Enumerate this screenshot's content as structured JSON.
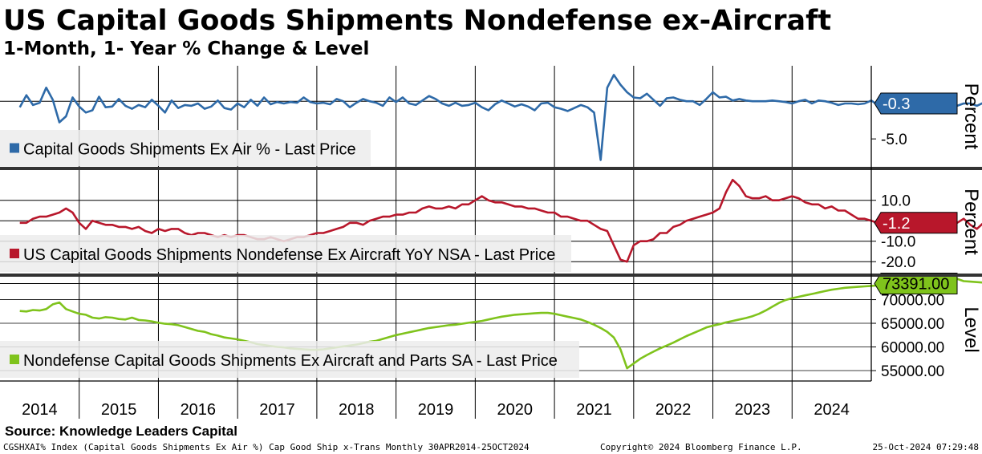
{
  "header": {
    "title": "US Capital Goods Shipments Nondefense ex-Aircraft",
    "subtitle": "1-Month, 1- Year % Change & Level"
  },
  "footer": {
    "source": "Source: Knowledge Leaders Capital",
    "description": "CGSHXAI% Index (Capital Goods Shipments Ex Air %) Cap Good Ship x-Trans  Monthly 30APR2014-25OCT2024",
    "copyright": "Copyright© 2024 Bloomberg Finance L.P.",
    "timestamp": "25-Oct-2024 07:29:48"
  },
  "colors": {
    "mom": "#2e6aa8",
    "yoy": "#b8172b",
    "level": "#7fc31c",
    "legend_bg": "#ececec"
  },
  "chart_data": [
    {
      "type": "line",
      "panel": "top",
      "ylabel": "Percent",
      "ticks": [
        "-5.0"
      ],
      "ylim": [
        -8.5,
        4.5
      ],
      "legend": "Capital Goods Shipments Ex Air % - Last Price",
      "last_value": "-0.3",
      "series": [
        {
          "name": "Capital Goods Shipments Ex Air % - Last Price",
          "x_start": "2014-04",
          "values": [
            -0.8,
            0.8,
            -0.5,
            -0.2,
            1.8,
            0.2,
            -2.8,
            -2.0,
            0.5,
            -0.7,
            -1.5,
            -1.2,
            0.6,
            -0.8,
            -0.7,
            0.3,
            -0.6,
            -1.0,
            -0.5,
            -0.8,
            0.2,
            -0.6,
            -1.5,
            0.1,
            -0.9,
            -0.5,
            -0.6,
            -0.3,
            -1.0,
            -0.7,
            0.1,
            -0.9,
            -1.1,
            -0.3,
            -0.8,
            0.2,
            -0.6,
            0.5,
            -0.4,
            -0.1,
            -0.3,
            -0.1,
            -0.2,
            0.5,
            -0.1,
            -0.3,
            -0.2,
            -0.4,
            0.3,
            0.0,
            -0.8,
            -0.2,
            0.3,
            0.0,
            -0.2,
            -0.6,
            0.5,
            -0.1,
            0.5,
            -0.3,
            -0.5,
            0.1,
            0.7,
            0.3,
            -0.3,
            -0.6,
            -0.2,
            -0.6,
            -0.5,
            -0.2,
            -0.8,
            -1.2,
            -0.4,
            0.1,
            -0.3,
            -0.7,
            -0.4,
            -0.7,
            -1.2,
            -0.3,
            -0.2,
            -0.8,
            -1.0,
            -1.3,
            -0.9,
            -0.5,
            -0.8,
            -1.5,
            -7.8,
            1.8,
            3.5,
            2.2,
            1.2,
            0.5,
            0.4,
            1.0,
            0.2,
            -0.6,
            0.4,
            0.5,
            0.2,
            0.0,
            0.0,
            -0.5,
            0.3,
            1.2,
            0.5,
            0.6,
            0.1,
            0.3,
            0.1,
            0.0,
            0.0,
            0.0,
            0.1,
            0.0,
            -0.1,
            -0.3,
            0.0,
            0.2,
            -0.3,
            0.1,
            0.0,
            -0.2,
            -0.5,
            -0.3,
            -0.3,
            -0.4,
            -0.3,
            0.1,
            -0.5,
            -0.2,
            -0.4,
            0.0,
            -0.5,
            -0.5,
            -0.2,
            0.6,
            -0.7,
            -0.7,
            -0.5,
            -0.1,
            -0.6,
            -0.3,
            -0.3,
            -0.6,
            -0.2,
            -0.5,
            -0.3
          ]
        }
      ]
    },
    {
      "type": "line",
      "panel": "middle",
      "ylabel": "Percent",
      "ticks": [
        "10.0",
        "-10.0",
        "-20.0"
      ],
      "ylim": [
        -25,
        24
      ],
      "legend": "US Capital Goods Shipments Nondefense Ex Aircraft YoY NSA - Last Price",
      "last_value": "-1.2",
      "series": [
        {
          "name": "US Capital Goods Shipments Nondefense Ex Aircraft YoY NSA - Last Price",
          "x_start": "2014-04",
          "values": [
            -1,
            -1,
            1,
            2,
            2,
            3,
            4,
            6,
            4,
            -1,
            -4,
            0,
            -1,
            -2,
            -2,
            -3,
            -3,
            -4,
            -3,
            -5,
            -6,
            -4,
            -5,
            -4,
            -4,
            -6,
            -7,
            -6,
            -6,
            -7,
            -8,
            -7,
            -8,
            -7,
            -7,
            -8,
            -9,
            -9,
            -8,
            -9,
            -10,
            -9,
            -8,
            -8,
            -7,
            -6,
            -6,
            -5,
            -4,
            -3,
            -1,
            -1,
            -2,
            0,
            1,
            2,
            2,
            3,
            3,
            4,
            4,
            6,
            7,
            6,
            6,
            7,
            6,
            8,
            8,
            10,
            12,
            10,
            9,
            9,
            8,
            7,
            7,
            6,
            6,
            5,
            4,
            4,
            2,
            2,
            1,
            0,
            0,
            -2,
            -4,
            -5,
            -12,
            -19,
            -20,
            -12,
            -10,
            -10,
            -9,
            -6,
            -6,
            -3,
            -2,
            0,
            1,
            2,
            3,
            4,
            6,
            14,
            20,
            17,
            12,
            11,
            11,
            12,
            10,
            10,
            11,
            12,
            11,
            9,
            8,
            8,
            6,
            7,
            5,
            5,
            3,
            1,
            1,
            0,
            -1,
            -1,
            0,
            1,
            -1,
            -2,
            -3,
            -2,
            -3,
            -3,
            -3,
            -2,
            -1,
            1,
            -2,
            -4,
            -1,
            -4,
            -3,
            -4,
            -2,
            -3,
            -1,
            -1
          ]
        }
      ]
    },
    {
      "type": "line",
      "panel": "bottom",
      "ylabel": "Level",
      "ticks": [
        "70000.00",
        "65000.00",
        "60000.00",
        "55000.00"
      ],
      "ylim": [
        52800,
        74500
      ],
      "legend": "Nondefense Capital Goods Shipments Ex Aircraft and Parts SA - Last Price",
      "last_value": "73391.00",
      "series": [
        {
          "name": "Nondefense Capital Goods Shipments Ex Aircraft and Parts SA - Last Price",
          "x_start": "2014-04",
          "values": [
            67600,
            67500,
            67800,
            67700,
            68000,
            69000,
            69400,
            68000,
            67500,
            67000,
            66800,
            66200,
            66000,
            66300,
            66200,
            65900,
            65800,
            66200,
            65700,
            65600,
            65400,
            65100,
            64900,
            64800,
            64600,
            64200,
            63800,
            63400,
            63200,
            62700,
            62400,
            62000,
            61800,
            61600,
            61300,
            61000,
            60600,
            60400,
            60200,
            60000,
            59900,
            59700,
            59600,
            59500,
            59400,
            59400,
            59500,
            59700,
            59900,
            60100,
            60300,
            60500,
            60800,
            61100,
            61300,
            61700,
            62100,
            62500,
            62800,
            63100,
            63400,
            63700,
            64000,
            64200,
            64400,
            64600,
            64700,
            64900,
            65100,
            65300,
            65500,
            65800,
            66100,
            66400,
            66600,
            66800,
            66900,
            67000,
            67100,
            67200,
            67200,
            67000,
            66700,
            66400,
            66100,
            65800,
            65300,
            64700,
            64000,
            63200,
            62000,
            59500,
            55500,
            56500,
            57500,
            58300,
            59000,
            59700,
            60300,
            60900,
            61600,
            62300,
            62900,
            63500,
            64100,
            64500,
            64800,
            65200,
            65500,
            65800,
            66100,
            66500,
            67000,
            67700,
            68500,
            69300,
            69900,
            70300,
            70600,
            70900,
            71200,
            71500,
            71800,
            72100,
            72300,
            72500,
            72600,
            72700,
            72800,
            72900,
            73000,
            73100,
            73200,
            73300,
            73300,
            73400,
            73400,
            73500,
            73600,
            73500,
            73500,
            73700,
            74400,
            73900,
            73800,
            73700,
            73600,
            73500,
            73500,
            73400,
            73400
          ]
        }
      ]
    }
  ],
  "x_axis": {
    "years": [
      "2014",
      "2015",
      "2016",
      "2017",
      "2018",
      "2019",
      "2020",
      "2021",
      "2022",
      "2023",
      "2024"
    ]
  }
}
